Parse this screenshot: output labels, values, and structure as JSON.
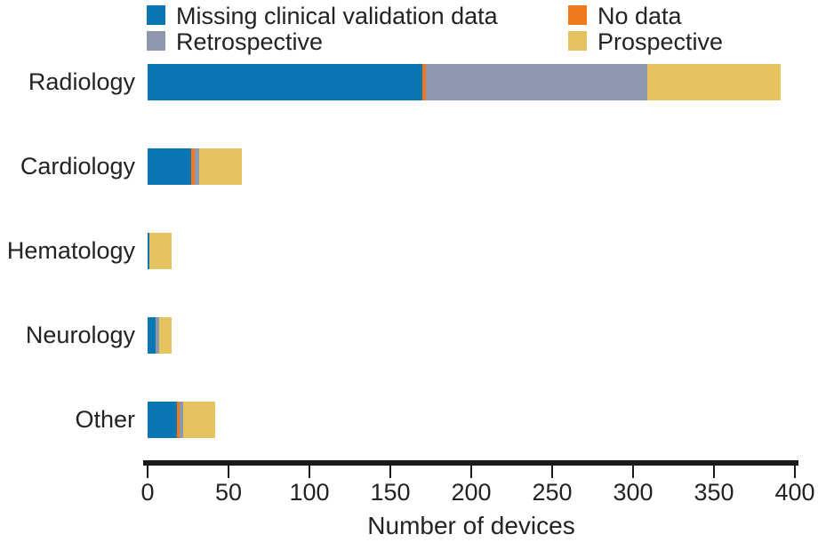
{
  "chart_data": {
    "type": "bar",
    "orientation": "horizontal",
    "stacked": true,
    "title": "",
    "xlabel": "Number of devices",
    "ylabel": "",
    "xlim": [
      0,
      400
    ],
    "xticks": [
      0,
      50,
      100,
      150,
      200,
      250,
      300,
      350,
      400
    ],
    "grid": false,
    "legend_position": "top-two-columns",
    "categories": [
      "Radiology",
      "Cardiology",
      "Hematology",
      "Neurology",
      "Other"
    ],
    "series": [
      {
        "name": "Missing clinical validation data",
        "key": "missing-clinical-validation-data",
        "color": "#0a76b2",
        "values": [
          170,
          27,
          1,
          5,
          18
        ]
      },
      {
        "name": "No data",
        "key": "no-data",
        "color": "#ee7a1d",
        "values": [
          2,
          2,
          0,
          0,
          2
        ]
      },
      {
        "name": "Retrospective",
        "key": "retrospective",
        "color": "#8e98ac",
        "values": [
          137,
          3,
          0,
          2,
          2
        ]
      },
      {
        "name": "Prospective",
        "key": "prospective",
        "color": "#e5c45f",
        "values": [
          82,
          26,
          14,
          8,
          20
        ]
      }
    ],
    "category_totals": [
      391,
      58,
      15,
      15,
      42
    ],
    "legend_columns": [
      [
        "Missing clinical validation data",
        "Retrospective"
      ],
      [
        "No data",
        "Prospective"
      ]
    ]
  },
  "colors": {
    "axis": "#1a1a1a",
    "text": "#232323",
    "background": "#ffffff"
  }
}
